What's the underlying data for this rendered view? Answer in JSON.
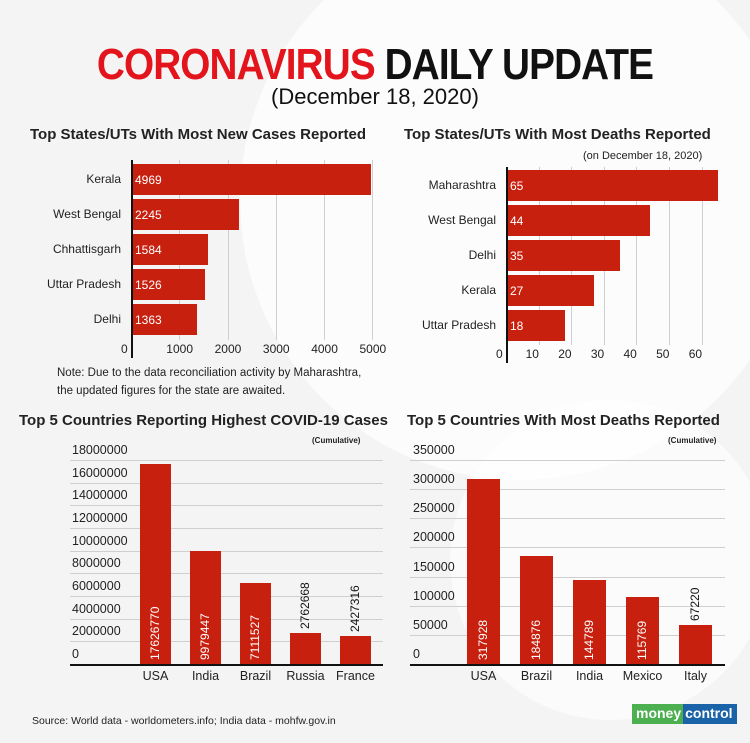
{
  "header": {
    "title_red": "CORONAVIRUS",
    "title_black": "DAILY UPDATE",
    "date": "(December 18, 2020)"
  },
  "colors": {
    "accent_red": "#e3141c",
    "bar_red": "#c8200f",
    "logo_green": "#4caf50",
    "logo_blue": "#1a63a8"
  },
  "note": {
    "line1": "Note: Due to the data reconciliation activity by Maharashtra,",
    "line2": "the updated figures for the state are awaited."
  },
  "footer": {
    "source": "Source: World data - worldometers.info; India data - mohfw.gov.in",
    "logo_part1": "money",
    "logo_part2": "control"
  },
  "chart_data": [
    {
      "type": "bar",
      "orientation": "horizontal",
      "title": "Top States/UTs With Most New Cases Reported",
      "categories": [
        "Kerala",
        "West Bengal",
        "Chhattisgarh",
        "Uttar Pradesh",
        "Delhi"
      ],
      "values": [
        4969,
        2245,
        1584,
        1526,
        1363
      ],
      "value_labels": [
        "4969",
        "2245",
        "1584",
        "1526",
        "1363"
      ],
      "xticks": [
        "0",
        "1000",
        "2000",
        "3000",
        "4000",
        "5000"
      ],
      "xlim": [
        0,
        5000
      ],
      "grid": true
    },
    {
      "type": "bar",
      "orientation": "horizontal",
      "title": "Top States/UTs With Most Deaths Reported",
      "subtitle": "(on December 18, 2020)",
      "categories": [
        "Maharashtra",
        "West Bengal",
        "Delhi",
        "Kerala",
        "Uttar Pradesh"
      ],
      "values": [
        65,
        44,
        35,
        27,
        18
      ],
      "value_labels": [
        "65",
        "44",
        "35",
        "27",
        "18"
      ],
      "xticks": [
        "0",
        "10",
        "20",
        "30",
        "40",
        "50",
        "60"
      ],
      "xlim": [
        0,
        65
      ],
      "grid": true
    },
    {
      "type": "bar",
      "orientation": "vertical",
      "title": "Top 5 Countries Reporting Highest COVID-19 Cases",
      "subtitle": "(Cumulative)",
      "categories": [
        "USA",
        "India",
        "Brazil",
        "Russia",
        "France"
      ],
      "values": [
        17626770,
        9979447,
        7111527,
        2762668,
        2427316
      ],
      "value_labels": [
        "17626770",
        "9979447",
        "7111527",
        "2762668",
        "2427316"
      ],
      "yticks": [
        "0",
        "2000000",
        "4000000",
        "6000000",
        "8000000",
        "10000000",
        "12000000",
        "14000000",
        "16000000",
        "18000000"
      ],
      "ylim": [
        0,
        18000000
      ],
      "grid": true
    },
    {
      "type": "bar",
      "orientation": "vertical",
      "title": "Top 5 Countries With Most Deaths Reported",
      "subtitle": "(Cumulative)",
      "categories": [
        "USA",
        "Brazil",
        "India",
        "Mexico",
        "Italy"
      ],
      "values": [
        317928,
        184876,
        144789,
        115769,
        67220
      ],
      "value_labels": [
        "317928",
        "184876",
        "144789",
        "115769",
        "67220"
      ],
      "yticks": [
        "0",
        "50000",
        "100000",
        "150000",
        "200000",
        "250000",
        "300000",
        "350000"
      ],
      "ylim": [
        0,
        350000
      ],
      "grid": true
    }
  ]
}
